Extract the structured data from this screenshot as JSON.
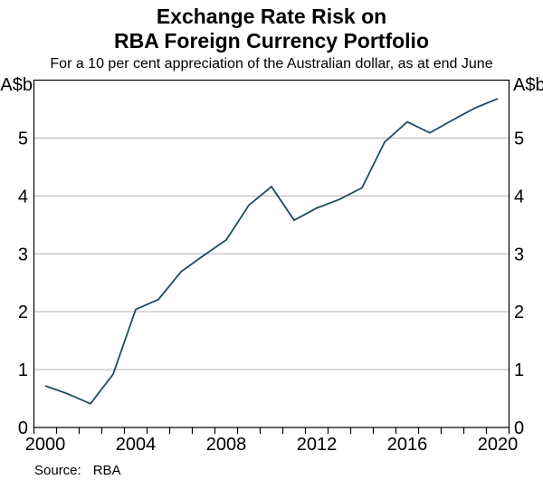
{
  "header": {
    "title_line1": "Exchange Rate Risk on",
    "title_line2": "RBA Foreign Currency Portfolio",
    "subtitle": "For a 10 per cent appreciation of the Australian dollar, as at end June"
  },
  "chart_data": {
    "type": "line",
    "title": "Exchange Rate Risk on RBA Foreign Currency Portfolio",
    "subtitle": "For a 10 per cent appreciation of the Australian dollar, as at end June",
    "unit": "A$b",
    "series": [
      {
        "name": "Exchange rate risk on RBA foreign currency portfolio",
        "x": [
          2000,
          2001,
          2002,
          2003,
          2004,
          2005,
          2006,
          2007,
          2008,
          2009,
          2010,
          2011,
          2012,
          2013,
          2014,
          2015,
          2016,
          2017,
          2018,
          2019,
          2020
        ],
        "values": [
          0.72,
          0.58,
          0.41,
          0.92,
          2.04,
          2.21,
          2.69,
          2.97,
          3.24,
          3.84,
          4.16,
          3.58,
          3.79,
          3.94,
          4.14,
          4.93,
          5.28,
          5.09,
          5.31,
          5.52,
          5.68
        ]
      }
    ],
    "xlabel": "",
    "ylabel": "A$b",
    "xlim": [
      2000,
      2021
    ],
    "ylim": [
      0,
      6
    ],
    "yticks": [
      0,
      1,
      2,
      3,
      4,
      5
    ],
    "xtick_labels": [
      2000,
      2004,
      2008,
      2012,
      2016,
      2020
    ],
    "x_minor_tick_step_years": 1,
    "grid": "horizontal",
    "legend": "none",
    "line_color": "#1c4c5e",
    "grid_color": "#b3b3b3",
    "axis_color": "#000000",
    "text_color": "#000000"
  },
  "footer": {
    "source_label": "Source:",
    "source_value": "RBA"
  }
}
